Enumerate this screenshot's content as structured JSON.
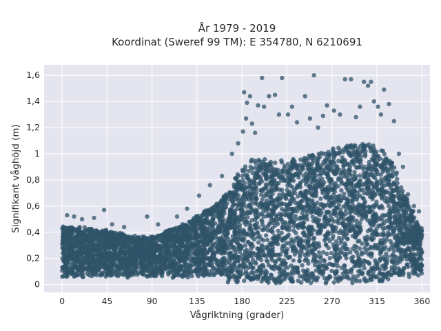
{
  "chart_data": {
    "type": "scatter",
    "title": "År 1979 - 2019",
    "subtitle": "Koordinat (Sweref 99 TM): E 354780, N 6210691",
    "xlabel": "Vågriktning (grader)",
    "ylabel": "Signifikant våghöjd (m)",
    "xlim": [
      -18,
      368
    ],
    "ylim": [
      -0.06,
      1.68
    ],
    "xticks": [
      0,
      45,
      90,
      135,
      180,
      225,
      270,
      315,
      360
    ],
    "xtick_labels": [
      "0",
      "45",
      "90",
      "135",
      "180",
      "225",
      "270",
      "315",
      "360"
    ],
    "yticks": [
      0,
      0.2,
      0.4,
      0.6,
      0.8,
      1.0,
      1.2,
      1.4,
      1.6
    ],
    "ytick_labels": [
      "0",
      "0,2",
      "0,4",
      "0,6",
      "0,8",
      "1",
      "1,2",
      "1,4",
      "1,6"
    ],
    "grid": true,
    "colors": {
      "plot_bg": "#e5e5f0",
      "grid": "#ffffff",
      "marker": "#2f5368"
    },
    "envelope": {
      "direction": [
        0,
        10,
        20,
        30,
        40,
        50,
        60,
        70,
        80,
        90,
        100,
        110,
        120,
        130,
        140,
        150,
        160,
        165,
        170,
        175,
        180,
        190,
        200,
        210,
        220,
        230,
        240,
        250,
        260,
        270,
        280,
        290,
        300,
        310,
        320,
        330,
        335,
        340,
        345,
        350,
        355,
        360
      ],
      "height_upper": [
        0.45,
        0.44,
        0.44,
        0.42,
        0.42,
        0.4,
        0.39,
        0.37,
        0.36,
        0.36,
        0.39,
        0.43,
        0.46,
        0.5,
        0.55,
        0.6,
        0.66,
        0.7,
        0.76,
        0.84,
        0.9,
        0.95,
        0.96,
        0.96,
        0.95,
        0.95,
        0.97,
        1.0,
        1.02,
        1.04,
        1.06,
        1.07,
        1.08,
        1.07,
        1.03,
        0.95,
        0.85,
        0.75,
        0.65,
        0.57,
        0.5,
        0.42
      ]
    },
    "outliers": [
      {
        "x": 5,
        "y": 0.53
      },
      {
        "x": 12,
        "y": 0.52
      },
      {
        "x": 20,
        "y": 0.5
      },
      {
        "x": 32,
        "y": 0.51
      },
      {
        "x": 42,
        "y": 0.57
      },
      {
        "x": 50,
        "y": 0.46
      },
      {
        "x": 62,
        "y": 0.44
      },
      {
        "x": 85,
        "y": 0.52
      },
      {
        "x": 96,
        "y": 0.46
      },
      {
        "x": 115,
        "y": 0.52
      },
      {
        "x": 125,
        "y": 0.58
      },
      {
        "x": 137,
        "y": 0.68
      },
      {
        "x": 148,
        "y": 0.76
      },
      {
        "x": 160,
        "y": 0.83
      },
      {
        "x": 170,
        "y": 1.0
      },
      {
        "x": 176,
        "y": 1.08
      },
      {
        "x": 181,
        "y": 1.17
      },
      {
        "x": 182,
        "y": 1.47
      },
      {
        "x": 184,
        "y": 1.27
      },
      {
        "x": 185,
        "y": 1.39
      },
      {
        "x": 188,
        "y": 1.44
      },
      {
        "x": 190,
        "y": 1.23
      },
      {
        "x": 193,
        "y": 1.16
      },
      {
        "x": 196,
        "y": 1.37
      },
      {
        "x": 200,
        "y": 1.58
      },
      {
        "x": 202,
        "y": 1.36
      },
      {
        "x": 207,
        "y": 1.44
      },
      {
        "x": 213,
        "y": 1.45
      },
      {
        "x": 217,
        "y": 1.3
      },
      {
        "x": 220,
        "y": 1.58
      },
      {
        "x": 226,
        "y": 1.3
      },
      {
        "x": 230,
        "y": 1.36
      },
      {
        "x": 235,
        "y": 1.24
      },
      {
        "x": 243,
        "y": 1.44
      },
      {
        "x": 248,
        "y": 1.27
      },
      {
        "x": 252,
        "y": 1.6
      },
      {
        "x": 256,
        "y": 1.2
      },
      {
        "x": 261,
        "y": 1.29
      },
      {
        "x": 265,
        "y": 1.37
      },
      {
        "x": 272,
        "y": 1.33
      },
      {
        "x": 278,
        "y": 1.3
      },
      {
        "x": 283,
        "y": 1.57
      },
      {
        "x": 289,
        "y": 1.57
      },
      {
        "x": 294,
        "y": 1.28
      },
      {
        "x": 298,
        "y": 1.36
      },
      {
        "x": 302,
        "y": 1.55
      },
      {
        "x": 306,
        "y": 1.52
      },
      {
        "x": 309,
        "y": 1.55
      },
      {
        "x": 312,
        "y": 1.4
      },
      {
        "x": 316,
        "y": 1.36
      },
      {
        "x": 319,
        "y": 1.3
      },
      {
        "x": 322,
        "y": 1.49
      },
      {
        "x": 327,
        "y": 1.38
      },
      {
        "x": 332,
        "y": 1.25
      },
      {
        "x": 337,
        "y": 1.0
      },
      {
        "x": 341,
        "y": 0.9
      },
      {
        "x": 346,
        "y": 0.69
      },
      {
        "x": 352,
        "y": 0.6
      },
      {
        "x": 357,
        "y": 0.56
      }
    ]
  }
}
